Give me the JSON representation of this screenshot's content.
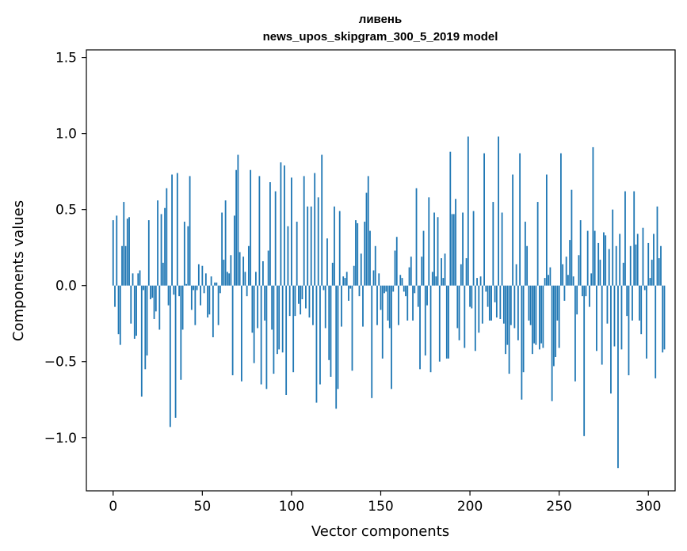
{
  "chart_data": {
    "type": "bar",
    "title": "ливень",
    "subtitle": "news_upos_skipgram_300_5_2019 model",
    "xlabel": "Vector components",
    "ylabel": "Components values",
    "xlim": [
      -15,
      315
    ],
    "ylim": [
      -1.35,
      1.55
    ],
    "xticks": [
      0,
      50,
      100,
      150,
      200,
      250,
      300
    ],
    "yticks": [
      -1.0,
      -0.5,
      0.0,
      0.5,
      1.0,
      1.5
    ],
    "xtick_labels": [
      "0",
      "50",
      "100",
      "150",
      "200",
      "250",
      "300"
    ],
    "ytick_labels": [
      "−1.0",
      "−0.5",
      "0.0",
      "0.5",
      "1.0",
      "1.5"
    ],
    "grid": false,
    "color": "#1f77b4",
    "values": [
      0.43,
      -0.14,
      0.46,
      -0.32,
      -0.39,
      0.26,
      0.55,
      0.26,
      0.44,
      0.45,
      -0.25,
      0.08,
      -0.35,
      -0.33,
      0.08,
      0.1,
      -0.73,
      -0.03,
      -0.55,
      -0.46,
      0.43,
      -0.09,
      -0.08,
      -0.22,
      -0.17,
      0.56,
      -0.29,
      0.47,
      0.15,
      0.51,
      0.64,
      -0.13,
      -0.93,
      0.73,
      -0.06,
      -0.87,
      0.74,
      -0.07,
      -0.62,
      -0.29,
      0.42,
      0.01,
      0.39,
      0.72,
      -0.16,
      -0.03,
      -0.26,
      -0.03,
      0.14,
      -0.13,
      0.13,
      -0.05,
      0.08,
      -0.21,
      -0.19,
      0.06,
      -0.34,
      0.02,
      0.02,
      -0.26,
      -0.05,
      0.48,
      0.17,
      0.56,
      0.09,
      0.08,
      0.2,
      -0.59,
      0.46,
      0.76,
      0.86,
      0.22,
      -0.63,
      0.19,
      0.09,
      -0.07,
      0.26,
      0.76,
      -0.31,
      -0.51,
      0.09,
      -0.28,
      0.72,
      -0.65,
      0.16,
      -0.23,
      -0.68,
      0.23,
      0.68,
      -0.29,
      -0.58,
      0.62,
      -0.45,
      -0.42,
      0.81,
      -0.44,
      0.79,
      -0.72,
      0.39,
      -0.2,
      0.71,
      -0.57,
      -0.2,
      0.42,
      -0.12,
      -0.19,
      -0.09,
      0.72,
      -0.15,
      0.52,
      -0.21,
      0.52,
      -0.26,
      0.74,
      -0.77,
      0.58,
      -0.65,
      0.86,
      -0.03,
      -0.28,
      0.31,
      -0.49,
      -0.6,
      0.15,
      0.52,
      -0.81,
      -0.68,
      0.49,
      -0.27,
      0.06,
      0.05,
      0.09,
      -0.1,
      -0.02,
      -0.56,
      0.13,
      0.43,
      0.41,
      -0.07,
      0.21,
      -0.27,
      0.42,
      0.61,
      0.72,
      0.36,
      -0.74,
      0.1,
      0.26,
      -0.26,
      0.08,
      -0.16,
      -0.48,
      -0.05,
      -0.04,
      -0.23,
      -0.28,
      -0.68,
      -0.04,
      0.23,
      0.32,
      -0.26,
      0.07,
      0.05,
      -0.04,
      -0.07,
      -0.23,
      0.12,
      0.19,
      -0.23,
      -0.05,
      0.64,
      -0.14,
      -0.55,
      0.19,
      0.36,
      -0.46,
      -0.13,
      0.58,
      -0.57,
      0.09,
      0.48,
      0.06,
      0.45,
      -0.5,
      0.18,
      0.05,
      0.21,
      -0.48,
      -0.48,
      0.88,
      0.47,
      0.47,
      0.57,
      -0.28,
      -0.36,
      0.14,
      0.48,
      -0.41,
      0.18,
      0.98,
      -0.14,
      -0.15,
      0.49,
      -0.43,
      0.05,
      -0.31,
      0.06,
      -0.25,
      0.87,
      -0.04,
      -0.14,
      -0.23,
      -0.23,
      0.55,
      -0.11,
      -0.21,
      0.98,
      -0.22,
      0.48,
      -0.25,
      -0.45,
      -0.39,
      -0.58,
      -0.26,
      0.73,
      -0.28,
      0.14,
      -0.36,
      0.87,
      -0.75,
      -0.57,
      0.42,
      0.26,
      -0.23,
      -0.26,
      -0.45,
      -0.38,
      -0.39,
      0.55,
      -0.42,
      -0.38,
      -0.41,
      0.05,
      0.73,
      0.07,
      0.12,
      -0.76,
      -0.53,
      -0.47,
      -0.23,
      -0.41,
      0.87,
      0.14,
      -0.1,
      0.19,
      0.07,
      0.3,
      0.63,
      0.06,
      -0.63,
      -0.19,
      0.2,
      0.43,
      -0.07,
      -0.99,
      -0.07,
      0.36,
      -0.14,
      0.08,
      0.91,
      0.36,
      -0.43,
      0.28,
      0.17,
      -0.52,
      0.35,
      0.33,
      -0.25,
      0.24,
      -0.71,
      0.5,
      -0.4,
      0.26,
      -1.2,
      0.34,
      -0.42,
      0.15,
      0.62,
      -0.2,
      -0.59,
      0.26,
      -0.23,
      0.62,
      0.27,
      0.34,
      -0.23,
      -0.32,
      0.38,
      -0.03,
      -0.48,
      0.28,
      0.05,
      0.17,
      0.34,
      -0.61,
      0.52,
      0.18,
      0.26,
      -0.44,
      -0.42
    ]
  }
}
